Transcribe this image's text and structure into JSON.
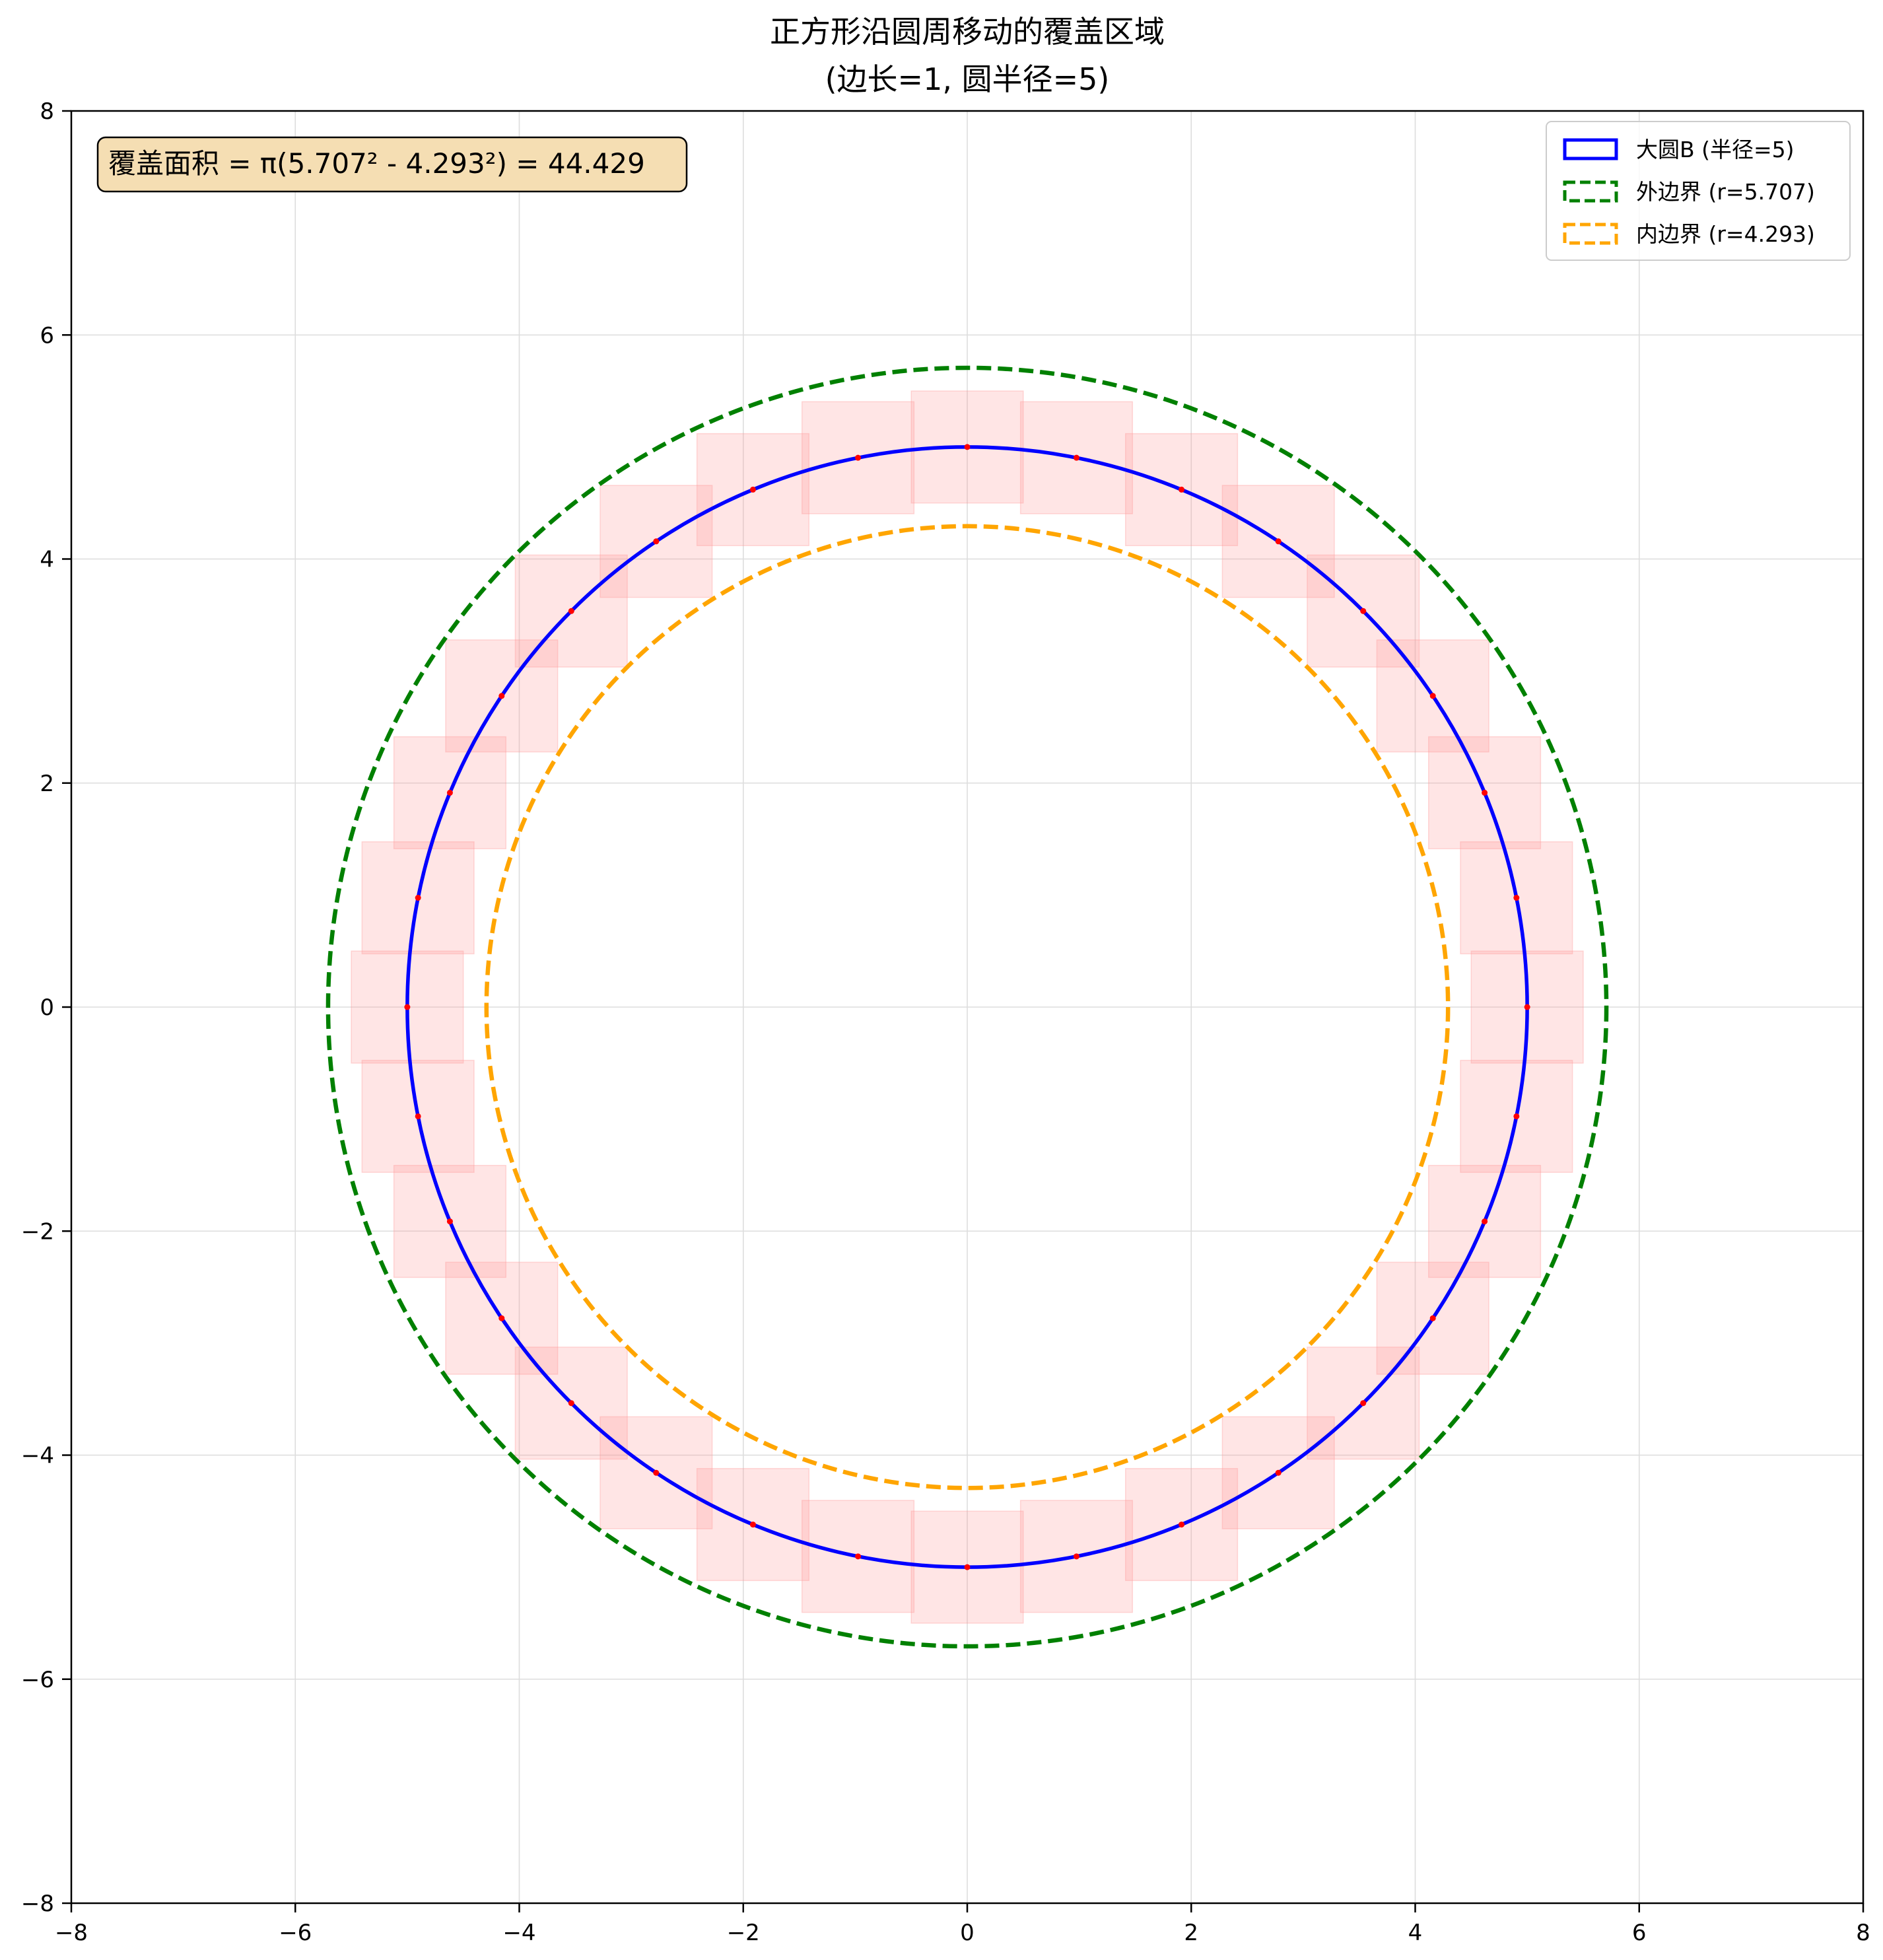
{
  "chart_data": {
    "type": "line",
    "title": "正方形沿圆周移动的覆盖区域",
    "subtitle": "(边长=1, 圆半径=5)",
    "xlim": [
      -8,
      8
    ],
    "ylim": [
      -8,
      8
    ],
    "xticks": [
      -8,
      -6,
      -4,
      -2,
      0,
      2,
      4,
      6,
      8
    ],
    "yticks": [
      -8,
      -6,
      -4,
      -2,
      0,
      2,
      4,
      6,
      8
    ],
    "xtick_labels": [
      "−8",
      "−6",
      "−4",
      "−2",
      "0",
      "2",
      "4",
      "6",
      "8"
    ],
    "ytick_labels": [
      "−8",
      "−6",
      "−4",
      "−2",
      "0",
      "2",
      "4",
      "6",
      "8"
    ],
    "grid": true,
    "legend_position": "top-right",
    "annotation": "覆盖面积 = π(5.707² - 4.293²) = 44.429",
    "square": {
      "side": 1,
      "count": 32,
      "fill": "#ff9999",
      "center_marker_color": "#ff0000"
    },
    "series": [
      {
        "name": "大圆B (半径=5)",
        "radius": 5,
        "color": "#0000ff",
        "dash": "solid"
      },
      {
        "name": "外边界 (r=5.707)",
        "radius": 5.707,
        "color": "#008000",
        "dash": "dashed"
      },
      {
        "name": "内边界 (r=4.293)",
        "radius": 4.293,
        "color": "#ffa500",
        "dash": "dashed"
      }
    ]
  }
}
